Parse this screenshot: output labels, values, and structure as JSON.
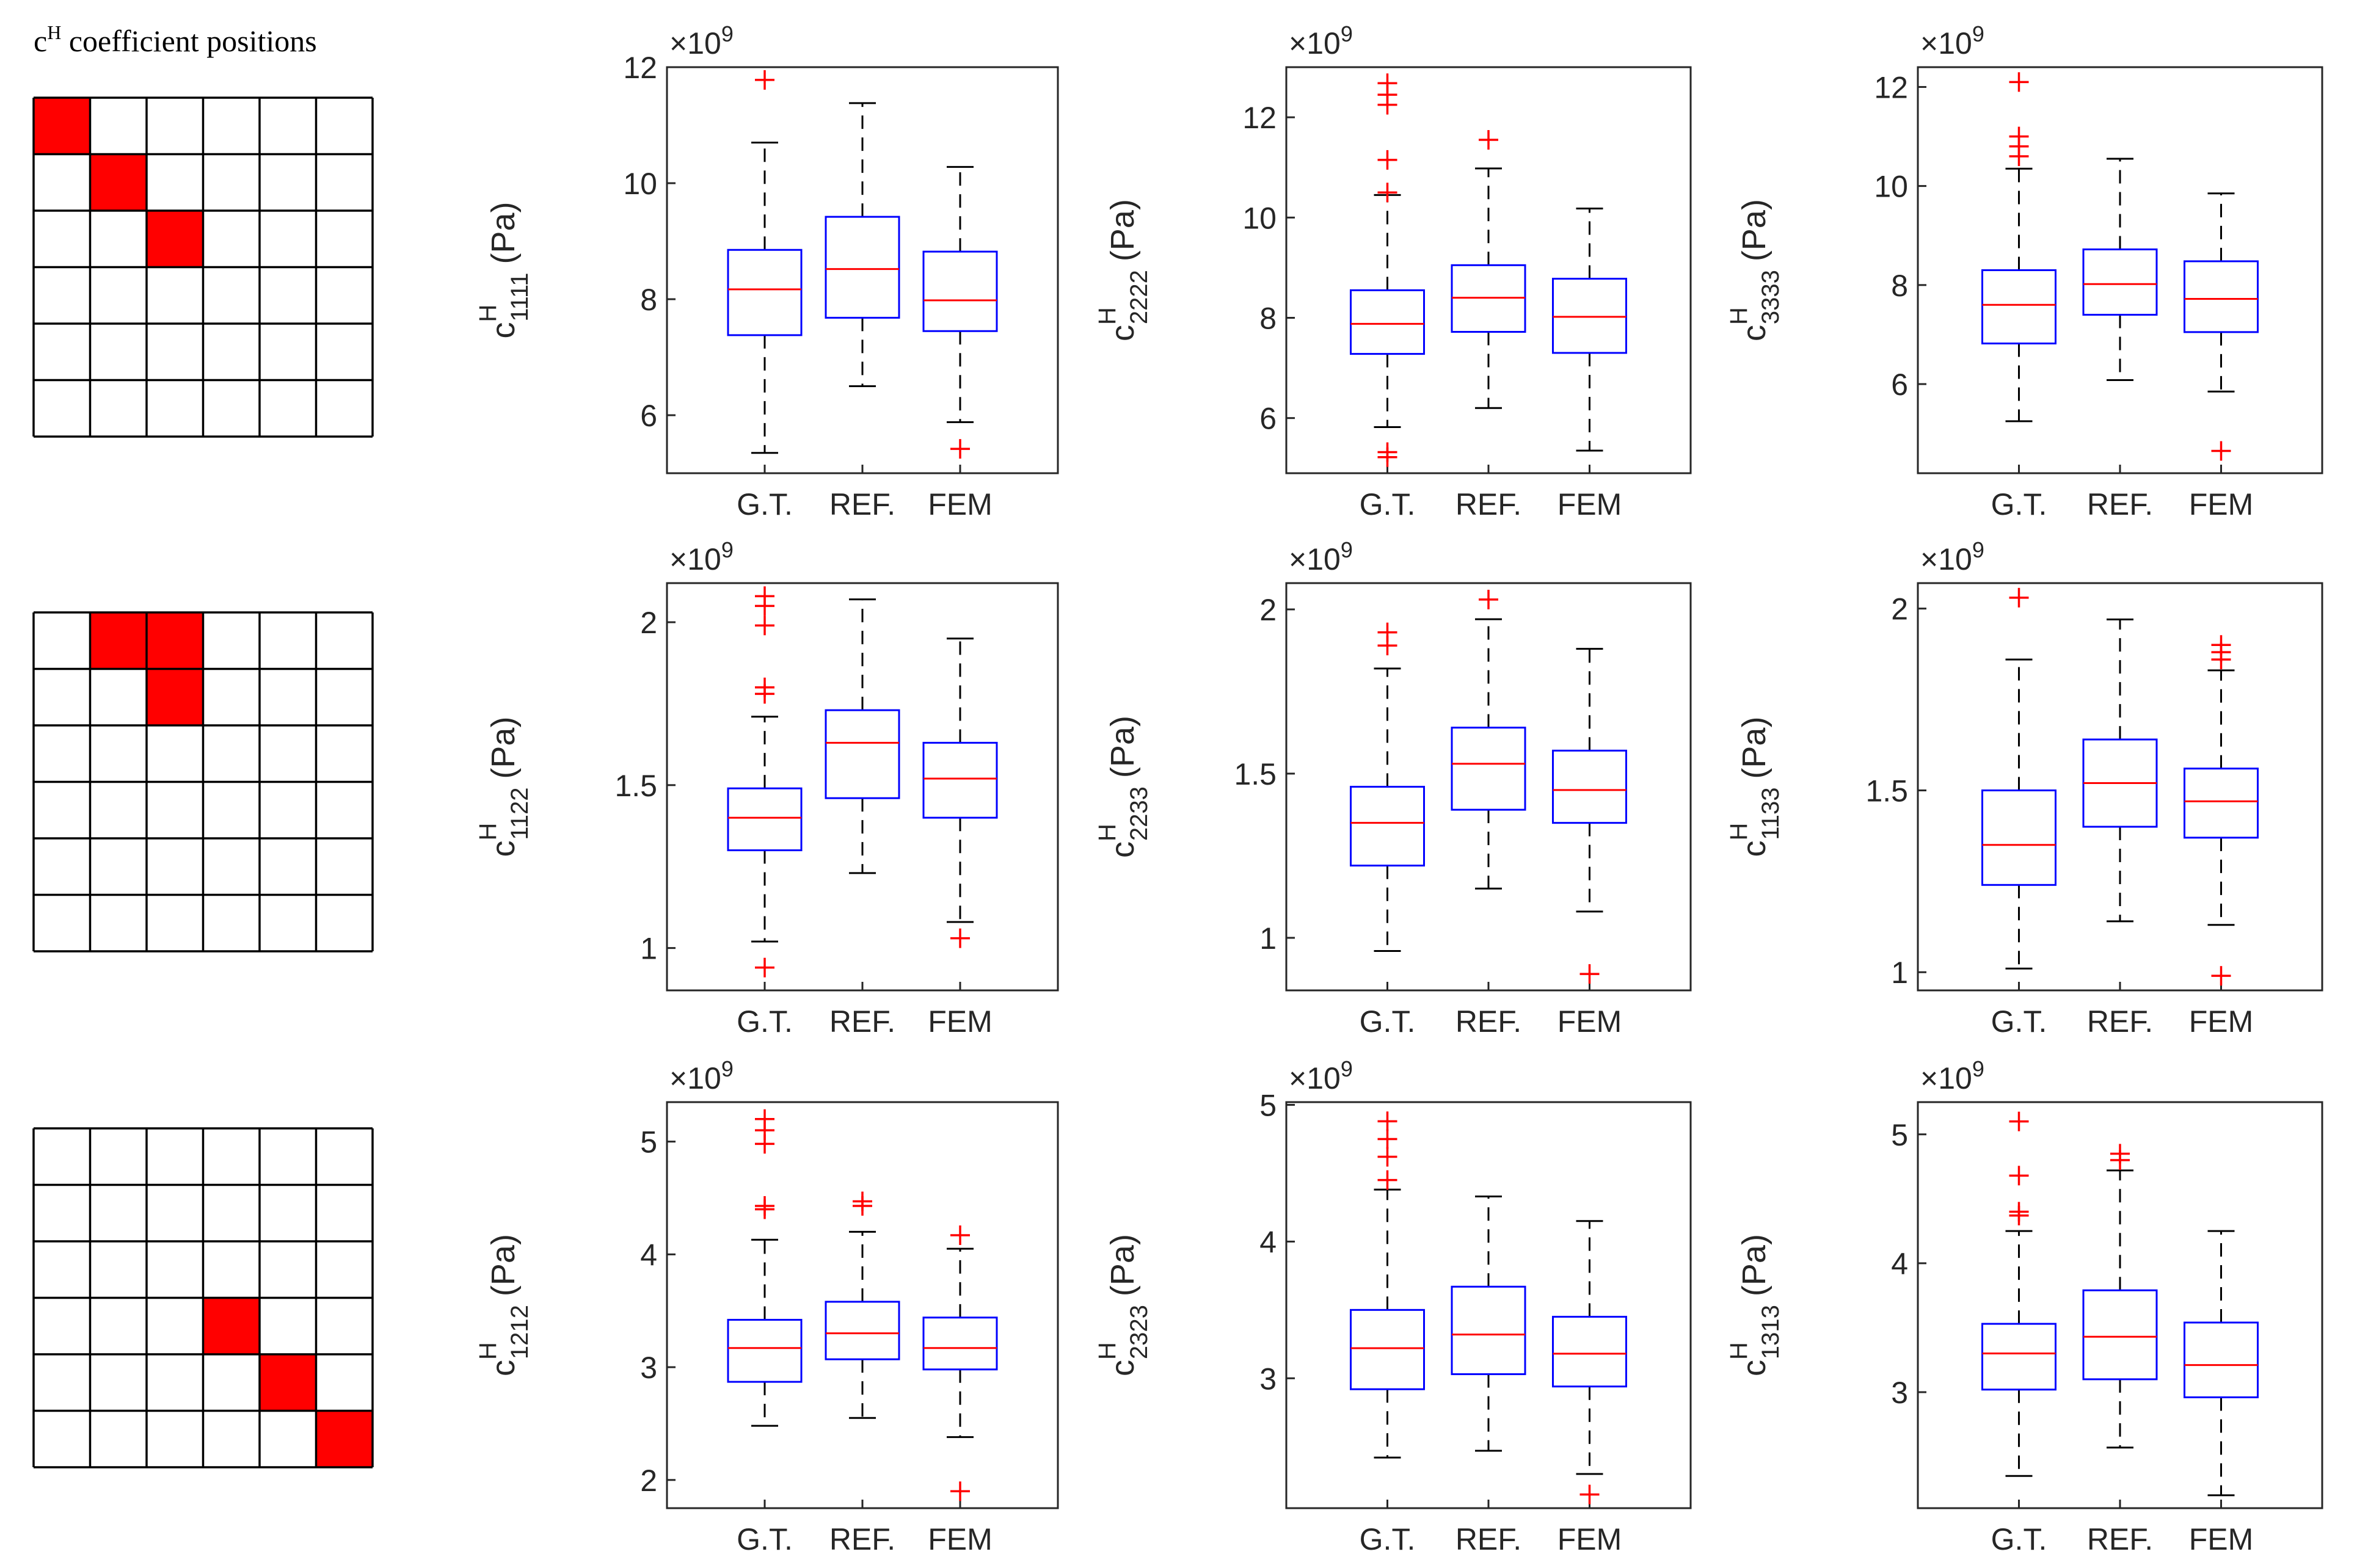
{
  "title_prefix": "c",
  "title_sup": "H",
  "title_rest": " coefficient positions",
  "exponent_base": "×10",
  "exponent_power": "9",
  "axis_label_prefix": "c",
  "axis_label_sup": "H",
  "axis_unit": "(Pa)",
  "colors": {
    "box": "#0000ff",
    "median": "#ff0000",
    "outlier": "#ff0000",
    "whisker": "#000000",
    "highlight": "#ff0000"
  },
  "matrices": [
    {
      "highlighted": [
        [
          0,
          0
        ],
        [
          1,
          1
        ],
        [
          2,
          2
        ]
      ]
    },
    {
      "highlighted": [
        [
          0,
          1
        ],
        [
          0,
          2
        ],
        [
          1,
          2
        ]
      ]
    },
    {
      "highlighted": [
        [
          3,
          3
        ],
        [
          4,
          4
        ],
        [
          5,
          5
        ]
      ]
    }
  ],
  "chart_data": [
    {
      "type": "box",
      "subscript": "1111",
      "categories": [
        "G.T.",
        "REF.",
        "FEM"
      ],
      "ylim": [
        5,
        12
      ],
      "yticks": [
        6,
        8,
        10,
        12
      ],
      "boxes": [
        {
          "whislo": 5.35,
          "q1": 7.38,
          "med": 8.17,
          "q3": 8.85,
          "whishi": 10.7,
          "fliers": [
            11.78
          ]
        },
        {
          "whislo": 6.5,
          "q1": 7.68,
          "med": 8.52,
          "q3": 9.42,
          "whishi": 11.38,
          "fliers": []
        },
        {
          "whislo": 5.88,
          "q1": 7.45,
          "med": 7.98,
          "q3": 8.82,
          "whishi": 10.28,
          "fliers": [
            5.42
          ]
        }
      ]
    },
    {
      "type": "box",
      "subscript": "2222",
      "categories": [
        "G.T.",
        "REF.",
        "FEM"
      ],
      "ylim": [
        4.9,
        13
      ],
      "yticks": [
        6,
        8,
        10,
        12
      ],
      "boxes": [
        {
          "whislo": 5.82,
          "q1": 7.28,
          "med": 7.88,
          "q3": 8.55,
          "whishi": 10.45,
          "fliers": [
            12.68,
            12.45,
            12.25,
            11.15,
            10.5,
            5.32,
            5.22
          ]
        },
        {
          "whislo": 6.2,
          "q1": 7.72,
          "med": 8.4,
          "q3": 9.05,
          "whishi": 10.98,
          "fliers": [
            11.55
          ]
        },
        {
          "whislo": 5.35,
          "q1": 7.3,
          "med": 8.02,
          "q3": 8.78,
          "whishi": 10.18,
          "fliers": []
        }
      ]
    },
    {
      "type": "box",
      "subscript": "3333",
      "categories": [
        "G.T.",
        "REF.",
        "FEM"
      ],
      "ylim": [
        4.2,
        12.4
      ],
      "yticks": [
        6,
        8,
        10,
        12
      ],
      "boxes": [
        {
          "whislo": 5.25,
          "q1": 6.82,
          "med": 7.6,
          "q3": 8.3,
          "whishi": 10.35,
          "fliers": [
            12.1,
            11.0,
            10.8,
            10.6
          ]
        },
        {
          "whislo": 6.08,
          "q1": 7.4,
          "med": 8.02,
          "q3": 8.72,
          "whishi": 10.55,
          "fliers": []
        },
        {
          "whislo": 5.85,
          "q1": 7.05,
          "med": 7.72,
          "q3": 8.48,
          "whishi": 9.85,
          "fliers": [
            4.65
          ]
        }
      ]
    },
    {
      "type": "box",
      "subscript": "1122",
      "categories": [
        "G.T.",
        "REF.",
        "FEM"
      ],
      "ylim": [
        0.87,
        2.12
      ],
      "yticks": [
        1,
        1.5,
        2
      ],
      "boxes": [
        {
          "whislo": 1.02,
          "q1": 1.3,
          "med": 1.4,
          "q3": 1.49,
          "whishi": 1.71,
          "fliers": [
            2.08,
            2.05,
            1.99,
            1.8,
            1.78,
            0.94
          ]
        },
        {
          "whislo": 1.23,
          "q1": 1.46,
          "med": 1.63,
          "q3": 1.73,
          "whishi": 2.07,
          "fliers": []
        },
        {
          "whislo": 1.08,
          "q1": 1.4,
          "med": 1.52,
          "q3": 1.63,
          "whishi": 1.95,
          "fliers": [
            1.03
          ]
        }
      ]
    },
    {
      "type": "box",
      "subscript": "2233",
      "categories": [
        "G.T.",
        "REF.",
        "FEM"
      ],
      "ylim": [
        0.84,
        2.08
      ],
      "yticks": [
        1,
        1.5,
        2
      ],
      "boxes": [
        {
          "whislo": 0.96,
          "q1": 1.22,
          "med": 1.35,
          "q3": 1.46,
          "whishi": 1.82,
          "fliers": [
            1.93,
            1.89
          ]
        },
        {
          "whislo": 1.15,
          "q1": 1.39,
          "med": 1.53,
          "q3": 1.64,
          "whishi": 1.97,
          "fliers": [
            2.03
          ]
        },
        {
          "whislo": 1.08,
          "q1": 1.35,
          "med": 1.45,
          "q3": 1.57,
          "whishi": 1.88,
          "fliers": [
            0.89
          ]
        }
      ]
    },
    {
      "type": "box",
      "subscript": "1133",
      "categories": [
        "G.T.",
        "REF.",
        "FEM"
      ],
      "ylim": [
        0.95,
        2.07
      ],
      "yticks": [
        1,
        1.5,
        2
      ],
      "boxes": [
        {
          "whislo": 1.01,
          "q1": 1.24,
          "med": 1.35,
          "q3": 1.5,
          "whishi": 1.86,
          "fliers": [
            2.03
          ]
        },
        {
          "whislo": 1.14,
          "q1": 1.4,
          "med": 1.52,
          "q3": 1.64,
          "whishi": 1.97,
          "fliers": []
        },
        {
          "whislo": 1.13,
          "q1": 1.37,
          "med": 1.47,
          "q3": 1.56,
          "whishi": 1.83,
          "fliers": [
            1.9,
            1.88,
            1.86,
            0.99
          ]
        }
      ]
    },
    {
      "type": "box",
      "subscript": "1212",
      "categories": [
        "G.T.",
        "REF.",
        "FEM"
      ],
      "ylim": [
        1.75,
        5.35
      ],
      "yticks": [
        2,
        3,
        4,
        5
      ],
      "boxes": [
        {
          "whislo": 2.48,
          "q1": 2.87,
          "med": 3.17,
          "q3": 3.42,
          "whishi": 4.13,
          "fliers": [
            5.2,
            5.1,
            4.98,
            4.43,
            4.4
          ]
        },
        {
          "whislo": 2.55,
          "q1": 3.07,
          "med": 3.3,
          "q3": 3.58,
          "whishi": 4.2,
          "fliers": [
            4.47,
            4.43
          ]
        },
        {
          "whislo": 2.38,
          "q1": 2.98,
          "med": 3.17,
          "q3": 3.44,
          "whishi": 4.05,
          "fliers": [
            4.17,
            1.9
          ]
        }
      ]
    },
    {
      "type": "box",
      "subscript": "2323",
      "categories": [
        "G.T.",
        "REF.",
        "FEM"
      ],
      "ylim": [
        2.05,
        5.02
      ],
      "yticks": [
        3,
        4,
        5
      ],
      "boxes": [
        {
          "whislo": 2.42,
          "q1": 2.92,
          "med": 3.22,
          "q3": 3.5,
          "whishi": 4.38,
          "fliers": [
            4.88,
            4.75,
            4.62,
            4.45
          ]
        },
        {
          "whislo": 2.47,
          "q1": 3.03,
          "med": 3.32,
          "q3": 3.67,
          "whishi": 4.33,
          "fliers": []
        },
        {
          "whislo": 2.3,
          "q1": 2.94,
          "med": 3.18,
          "q3": 3.45,
          "whishi": 4.15,
          "fliers": [
            2.15
          ]
        }
      ]
    },
    {
      "type": "box",
      "subscript": "1313",
      "categories": [
        "G.T.",
        "REF.",
        "FEM"
      ],
      "ylim": [
        2.1,
        5.25
      ],
      "yticks": [
        3,
        4,
        5
      ],
      "boxes": [
        {
          "whislo": 2.35,
          "q1": 3.02,
          "med": 3.3,
          "q3": 3.53,
          "whishi": 4.25,
          "fliers": [
            5.1,
            4.68,
            4.4,
            4.37
          ]
        },
        {
          "whislo": 2.57,
          "q1": 3.1,
          "med": 3.43,
          "q3": 3.79,
          "whishi": 4.72,
          "fliers": [
            4.85,
            4.8
          ]
        },
        {
          "whislo": 2.2,
          "q1": 2.96,
          "med": 3.21,
          "q3": 3.54,
          "whishi": 4.25,
          "fliers": []
        }
      ]
    }
  ]
}
